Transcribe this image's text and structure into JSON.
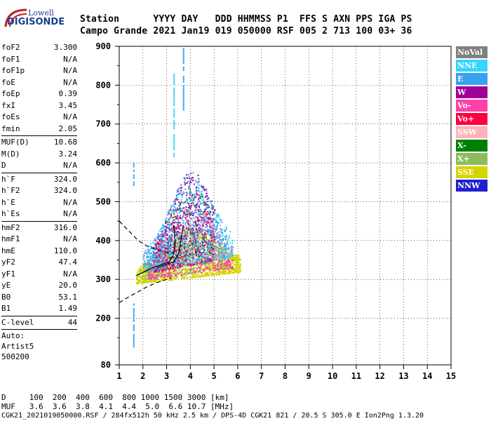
{
  "logo": {
    "line1": "Lowell",
    "line2": "DIGISONDE"
  },
  "header": {
    "row1": "Station      YYYY DAY   DDD HHMMSS P1  FFS S AXN PPS IGA PS",
    "row2": "Campo Grande 2021 Jan19 019 050000 RSF 005 2 713 100 03+ 36"
  },
  "params": {
    "group1": [
      {
        "k": "foF2",
        "v": "3.300"
      },
      {
        "k": "foF1",
        "v": "N/A"
      },
      {
        "k": "foF1p",
        "v": "N/A"
      },
      {
        "k": "foE",
        "v": "N/A"
      },
      {
        "k": "foEp",
        "v": "0.39"
      },
      {
        "k": "fxI",
        "v": "3.45"
      },
      {
        "k": "foEs",
        "v": "N/A"
      },
      {
        "k": "fmin",
        "v": "2.05"
      }
    ],
    "group2": [
      {
        "k": "MUF(D)",
        "v": "10.68"
      },
      {
        "k": "M(D)",
        "v": "3.24"
      },
      {
        "k": "D",
        "v": "N/A"
      }
    ],
    "group3": [
      {
        "k": "h`F",
        "v": "324.0"
      },
      {
        "k": "h`F2",
        "v": "324.0"
      },
      {
        "k": "h`E",
        "v": "N/A"
      },
      {
        "k": "h`Es",
        "v": "N/A"
      }
    ],
    "group4": [
      {
        "k": "hmF2",
        "v": "316.0"
      },
      {
        "k": "hmF1",
        "v": "N/A"
      },
      {
        "k": "hmE",
        "v": "110.0"
      },
      {
        "k": "yF2",
        "v": "47.4"
      },
      {
        "k": "yF1",
        "v": "N/A"
      },
      {
        "k": "yE",
        "v": "20.0"
      },
      {
        "k": "B0",
        "v": "53.1"
      },
      {
        "k": "B1",
        "v": "1.49"
      }
    ],
    "group5": [
      {
        "k": "C-level",
        "v": "44"
      }
    ],
    "auto": [
      "Auto:",
      "Artist5",
      "500200"
    ]
  },
  "legend": [
    {
      "name": "NoVal",
      "color": "#808080"
    },
    {
      "name": "NNE",
      "color": "#33d6ff"
    },
    {
      "name": "E",
      "color": "#3aa0f0"
    },
    {
      "name": "W",
      "color": "#a00098"
    },
    {
      "name": "Vo-",
      "color": "#ff40a8"
    },
    {
      "name": "Vo+",
      "color": "#ff0040"
    },
    {
      "name": "SSW",
      "color": "#ffb3b8"
    },
    {
      "name": "X-",
      "color": "#008000"
    },
    {
      "name": "X+",
      "color": "#8cbc5a"
    },
    {
      "name": "SSE",
      "color": "#d4d400"
    },
    {
      "name": "NNW",
      "color": "#2020d0"
    }
  ],
  "bottom": {
    "line1": "D     100  200  400  600  800 1000 1500 3000 [km]",
    "line2": "MUF   3.6  3.6  3.8  4.1  4.4  5.0  6.6 10.7 [MHz]",
    "line3": "CGK21_2021019050000.RSF / 284fx512h 50 kHz 2.5 km / DPS-4D CGK21 821 / 20.5 S 305.0 E Ion2Png 1.3.20"
  },
  "chart_data": {
    "type": "scatter",
    "xlim": [
      1,
      15
    ],
    "ylim": [
      80,
      900
    ],
    "xticks": [
      1,
      2,
      3,
      4,
      5,
      6,
      7,
      8,
      9,
      10,
      11,
      12,
      13,
      14,
      15
    ],
    "yticks": [
      80,
      200,
      300,
      400,
      500,
      600,
      700,
      800,
      900
    ],
    "grid": true,
    "legend_placement": "right",
    "clusters": [
      {
        "series": "SSE",
        "fmin": 1.7,
        "fmax": 6.1,
        "hmin": 290,
        "hmax": 420,
        "count": 1400
      },
      {
        "series": "X+",
        "fmin": 1.9,
        "fmax": 5.5,
        "hmin": 300,
        "hmax": 420,
        "count": 400
      },
      {
        "series": "W",
        "fmin": 2.4,
        "fmax": 5.0,
        "hmin": 320,
        "hmax": 560,
        "count": 700
      },
      {
        "series": "Vo-",
        "fmin": 2.2,
        "fmax": 5.8,
        "hmin": 300,
        "hmax": 480,
        "count": 500
      },
      {
        "series": "NNE",
        "fmin": 2.2,
        "fmax": 5.8,
        "hmin": 330,
        "hmax": 560,
        "count": 600
      },
      {
        "series": "E",
        "fmin": 2.0,
        "fmax": 5.5,
        "hmin": 320,
        "hmax": 560,
        "count": 500
      },
      {
        "series": "Vo+",
        "fmin": 2.5,
        "fmax": 5.0,
        "hmin": 320,
        "hmax": 520,
        "count": 150
      },
      {
        "series": "SSW",
        "fmin": 2.5,
        "fmax": 5.5,
        "hmin": 330,
        "hmax": 480,
        "count": 100
      },
      {
        "series": "X-",
        "fmin": 3.0,
        "fmax": 5.0,
        "hmin": 340,
        "hmax": 520,
        "count": 80
      },
      {
        "series": "NNW",
        "fmin": 3.0,
        "fmax": 4.5,
        "hmin": 340,
        "hmax": 480,
        "count": 40
      }
    ],
    "vertical_traces": [
      {
        "series": "E",
        "f": 1.6,
        "hmin": 130,
        "hmax": 240
      },
      {
        "series": "E",
        "f": 1.6,
        "hmin": 540,
        "hmax": 610
      },
      {
        "series": "E",
        "f": 3.7,
        "hmin": 740,
        "hmax": 900
      },
      {
        "series": "NNE",
        "f": 3.3,
        "hmin": 620,
        "hmax": 830
      }
    ],
    "trace_o": [
      [
        1.7,
        310
      ],
      [
        2.0,
        318
      ],
      [
        2.4,
        330
      ],
      [
        2.8,
        338
      ],
      [
        3.1,
        345
      ],
      [
        3.3,
        365
      ],
      [
        3.35,
        400
      ],
      [
        3.3,
        440
      ]
    ],
    "trace_x": [
      [
        2.6,
        330
      ],
      [
        2.9,
        336
      ],
      [
        3.3,
        346
      ],
      [
        3.5,
        366
      ],
      [
        3.6,
        400
      ],
      [
        3.7,
        440
      ]
    ],
    "profile_upper": [
      [
        1.0,
        450
      ],
      [
        1.4,
        425
      ],
      [
        1.8,
        400
      ],
      [
        2.2,
        385
      ],
      [
        2.6,
        376
      ],
      [
        3.0,
        370
      ],
      [
        3.2,
        368
      ]
    ],
    "profile_lower": [
      [
        1.0,
        240
      ],
      [
        1.4,
        255
      ],
      [
        1.8,
        268
      ],
      [
        2.2,
        282
      ],
      [
        2.6,
        292
      ],
      [
        3.0,
        300
      ],
      [
        3.2,
        303
      ]
    ]
  }
}
